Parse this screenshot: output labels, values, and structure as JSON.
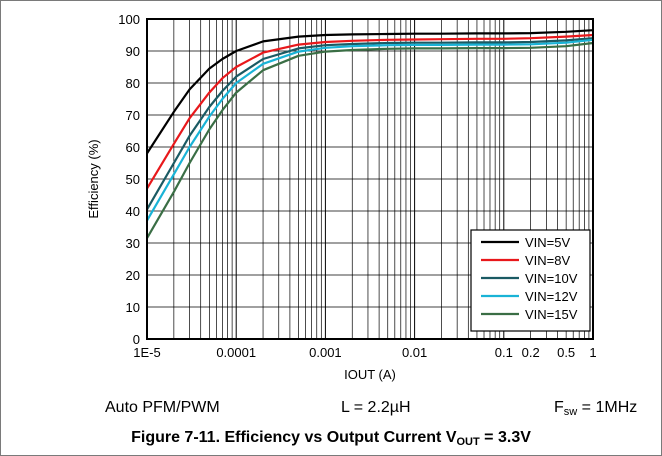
{
  "chart_data": {
    "type": "line",
    "xlabel": "IOUT (A)",
    "ylabel": "Efficiency (%)",
    "xscale": "log",
    "xlim": [
      1e-05,
      1
    ],
    "ylim": [
      0,
      100
    ],
    "grid": true,
    "legend_position": "bottom-right",
    "x_tick_values": [
      1e-05,
      0.0001,
      0.001,
      0.01,
      0.1,
      0.2,
      0.5,
      1
    ],
    "x_tick_labels": [
      "1E-5",
      "0.0001",
      "0.001",
      "0.01",
      "0.1",
      "0.2",
      "0.5",
      "1"
    ],
    "y_tick_values": [
      0,
      10,
      20,
      30,
      40,
      50,
      60,
      70,
      80,
      90,
      100
    ],
    "y_tick_labels": [
      "0",
      "10",
      "20",
      "30",
      "40",
      "50",
      "60",
      "70",
      "80",
      "90",
      "100"
    ],
    "series": [
      {
        "name": "VIN=5V",
        "color": "#000000",
        "x": [
          1e-05,
          2e-05,
          3e-05,
          5e-05,
          7e-05,
          0.0001,
          0.0002,
          0.0005,
          0.001,
          0.002,
          0.005,
          0.01,
          0.02,
          0.05,
          0.1,
          0.2,
          0.5,
          1
        ],
        "y": [
          58,
          71,
          78,
          84.5,
          87.5,
          90,
          93,
          94.5,
          95,
          95.2,
          95.3,
          95.4,
          95.4,
          95.5,
          95.5,
          95.6,
          96,
          96.5
        ]
      },
      {
        "name": "VIN=8V",
        "color": "#e8181b",
        "x": [
          1e-05,
          2e-05,
          3e-05,
          5e-05,
          7e-05,
          0.0001,
          0.0002,
          0.0005,
          0.001,
          0.002,
          0.005,
          0.01,
          0.02,
          0.05,
          0.1,
          0.2,
          0.5,
          1
        ],
        "y": [
          47,
          61,
          69,
          77,
          81.5,
          85,
          89.5,
          92,
          92.8,
          93.2,
          93.5,
          93.6,
          93.7,
          93.8,
          93.8,
          94,
          94.5,
          95
        ]
      },
      {
        "name": "VIN=10V",
        "color": "#1a5a63",
        "x": [
          1e-05,
          2e-05,
          3e-05,
          5e-05,
          7e-05,
          0.0001,
          0.0002,
          0.0005,
          0.001,
          0.002,
          0.005,
          0.01,
          0.02,
          0.05,
          0.1,
          0.2,
          0.5,
          1
        ],
        "y": [
          40.5,
          55,
          63.5,
          72.5,
          77.5,
          82,
          87.5,
          90.8,
          91.8,
          92.2,
          92.5,
          92.6,
          92.6,
          92.7,
          92.7,
          92.8,
          93.3,
          94
        ]
      },
      {
        "name": "VIN=12V",
        "color": "#19b3d6",
        "x": [
          1e-05,
          2e-05,
          3e-05,
          5e-05,
          7e-05,
          0.0001,
          0.0002,
          0.0005,
          0.001,
          0.002,
          0.005,
          0.01,
          0.02,
          0.05,
          0.1,
          0.2,
          0.5,
          1
        ],
        "y": [
          37,
          51.5,
          60,
          69.5,
          75,
          80,
          86,
          89.8,
          91,
          91.5,
          91.8,
          91.9,
          91.9,
          92,
          92,
          92.1,
          92.6,
          93.5
        ]
      },
      {
        "name": "VIN=15V",
        "color": "#3a6e45",
        "x": [
          1e-05,
          2e-05,
          3e-05,
          5e-05,
          7e-05,
          0.0001,
          0.0002,
          0.0005,
          0.001,
          0.002,
          0.005,
          0.01,
          0.02,
          0.05,
          0.1,
          0.2,
          0.5,
          1
        ],
        "y": [
          31.5,
          46,
          55,
          65.5,
          71.5,
          77,
          84,
          88.5,
          89.8,
          90.3,
          90.7,
          90.8,
          90.8,
          90.9,
          90.9,
          91,
          91.5,
          92.5
        ]
      }
    ]
  },
  "conditions": {
    "mode": "Auto PFM/PWM",
    "inductor": "L = 2.2µH",
    "fsw_main": "F",
    "fsw_sub": "sw",
    "fsw_value": " = 1MHz"
  },
  "caption": {
    "main": "Figure 7-11. Efficiency vs Output Current V",
    "sub": "OUT",
    "tail": " = 3.3V"
  }
}
